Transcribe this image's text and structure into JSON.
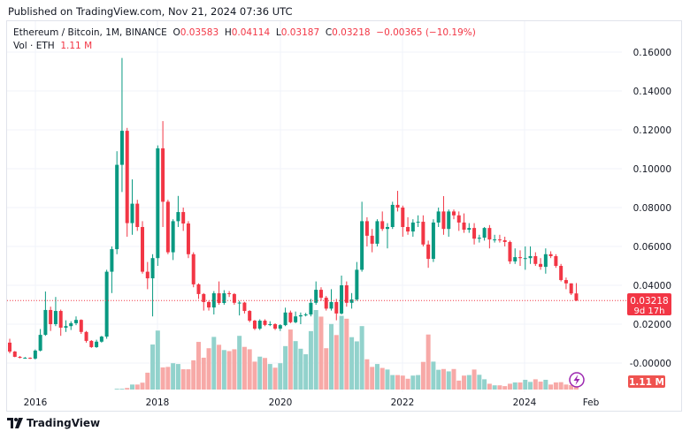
{
  "published": "Published on TradingView.com, Nov 21, 2024 07:36 UTC",
  "legend": {
    "symbol": "Ethereum / Bitcoin, 1M, BINANCE",
    "o_label": "O",
    "o": "0.03583",
    "h_label": "H",
    "h": "0.04114",
    "l_label": "L",
    "l": "0.03187",
    "c_label": "C",
    "c": "0.03218",
    "change": "−0.00365 (−10.19%)",
    "vol_label": "Vol · ETH",
    "vol": "1.11 M"
  },
  "price_tag": {
    "price": "0.03218",
    "countdown": "9d 17h"
  },
  "volume_tag": "1.11 M",
  "footer": {
    "brand": "TradingView"
  },
  "colors": {
    "up": "#089981",
    "down": "#f23645",
    "up_volume": "#92d2cc",
    "down_volume": "#f7a9a7",
    "grid": "#f0f3fa",
    "alert_icon": "#9c27b0"
  },
  "icons": {
    "alert": "lightning-icon",
    "logo": "tradingview-logo-icon"
  },
  "chart_data": {
    "type": "candlestick",
    "title": "Ethereum / Bitcoin, 1M, BINANCE",
    "interval": "1M",
    "y_ticks": [
      "0.16000",
      "0.14000",
      "0.12000",
      "0.10000",
      "0.08000",
      "0.06000",
      "0.04000",
      "0.02000",
      "-0.00000"
    ],
    "y_tick_values": [
      0.16,
      0.14,
      0.12,
      0.1,
      0.08,
      0.06,
      0.04,
      0.02,
      0.0
    ],
    "x_ticks": [
      "2016",
      "2018",
      "2020",
      "2022",
      "2024",
      "Feb"
    ],
    "ylim": [
      0,
      0.16
    ],
    "grid": true,
    "last_price": 0.03218,
    "dates": [
      "2015-08",
      "2015-09",
      "2015-10",
      "2015-11",
      "2015-12",
      "2016-01",
      "2016-02",
      "2016-03",
      "2016-04",
      "2016-05",
      "2016-06",
      "2016-07",
      "2016-08",
      "2016-09",
      "2016-10",
      "2016-11",
      "2016-12",
      "2017-01",
      "2017-02",
      "2017-03",
      "2017-04",
      "2017-05",
      "2017-06",
      "2017-07",
      "2017-08",
      "2017-09",
      "2017-10",
      "2017-11",
      "2017-12",
      "2018-01",
      "2018-02",
      "2018-03",
      "2018-04",
      "2018-05",
      "2018-06",
      "2018-07",
      "2018-08",
      "2018-09",
      "2018-10",
      "2018-11",
      "2018-12",
      "2019-01",
      "2019-02",
      "2019-03",
      "2019-04",
      "2019-05",
      "2019-06",
      "2019-07",
      "2019-08",
      "2019-09",
      "2019-10",
      "2019-11",
      "2019-12",
      "2020-01",
      "2020-02",
      "2020-03",
      "2020-04",
      "2020-05",
      "2020-06",
      "2020-07",
      "2020-08",
      "2020-09",
      "2020-10",
      "2020-11",
      "2020-12",
      "2021-01",
      "2021-02",
      "2021-03",
      "2021-04",
      "2021-05",
      "2021-06",
      "2021-07",
      "2021-08",
      "2021-09",
      "2021-10",
      "2021-11",
      "2021-12",
      "2022-01",
      "2022-02",
      "2022-03",
      "2022-04",
      "2022-05",
      "2022-06",
      "2022-07",
      "2022-08",
      "2022-09",
      "2022-10",
      "2022-11",
      "2022-12",
      "2023-01",
      "2023-02",
      "2023-03",
      "2023-04",
      "2023-05",
      "2023-06",
      "2023-07",
      "2023-08",
      "2023-09",
      "2023-10",
      "2023-11",
      "2023-12",
      "2024-01",
      "2024-02",
      "2024-03",
      "2024-04",
      "2024-05",
      "2024-06",
      "2024-07",
      "2024-08",
      "2024-09",
      "2024-10",
      "2024-11"
    ],
    "ohlc": [
      [
        0.0105,
        0.0125,
        0.005,
        0.0059
      ],
      [
        0.0059,
        0.0062,
        0.003,
        0.0032
      ],
      [
        0.0032,
        0.0036,
        0.0024,
        0.0027
      ],
      [
        0.0027,
        0.0031,
        0.0024,
        0.0027
      ],
      [
        0.0027,
        0.0029,
        0.0021,
        0.0023
      ],
      [
        0.0023,
        0.007,
        0.0018,
        0.0064
      ],
      [
        0.0064,
        0.0175,
        0.006,
        0.0145
      ],
      [
        0.0145,
        0.0368,
        0.014,
        0.0273
      ],
      [
        0.0273,
        0.029,
        0.0165,
        0.02
      ],
      [
        0.02,
        0.034,
        0.019,
        0.0268
      ],
      [
        0.0268,
        0.0275,
        0.014,
        0.0182
      ],
      [
        0.0182,
        0.022,
        0.016,
        0.019
      ],
      [
        0.019,
        0.0215,
        0.017,
        0.0205
      ],
      [
        0.0205,
        0.024,
        0.0195,
        0.0222
      ],
      [
        0.0222,
        0.0225,
        0.015,
        0.016
      ],
      [
        0.016,
        0.0165,
        0.0105,
        0.0114
      ],
      [
        0.0114,
        0.0118,
        0.0078,
        0.0082
      ],
      [
        0.0082,
        0.012,
        0.0078,
        0.011
      ],
      [
        0.011,
        0.014,
        0.0105,
        0.0136
      ],
      [
        0.0136,
        0.048,
        0.0125,
        0.047
      ],
      [
        0.047,
        0.06,
        0.036,
        0.0586
      ],
      [
        0.0586,
        0.109,
        0.056,
        0.102
      ],
      [
        0.102,
        0.157,
        0.088,
        0.1195
      ],
      [
        0.1195,
        0.121,
        0.065,
        0.072
      ],
      [
        0.072,
        0.0945,
        0.066,
        0.082
      ],
      [
        0.082,
        0.084,
        0.068,
        0.07
      ],
      [
        0.07,
        0.073,
        0.046,
        0.047
      ],
      [
        0.047,
        0.052,
        0.038,
        0.0436
      ],
      [
        0.0436,
        0.056,
        0.024,
        0.054
      ],
      [
        0.054,
        0.112,
        0.05,
        0.1105
      ],
      [
        0.1105,
        0.1245,
        0.07,
        0.083
      ],
      [
        0.083,
        0.084,
        0.056,
        0.057
      ],
      [
        0.057,
        0.074,
        0.053,
        0.073
      ],
      [
        0.073,
        0.086,
        0.07,
        0.0777
      ],
      [
        0.0777,
        0.08,
        0.068,
        0.0718
      ],
      [
        0.0718,
        0.073,
        0.054,
        0.056
      ],
      [
        0.056,
        0.057,
        0.039,
        0.0405
      ],
      [
        0.0405,
        0.041,
        0.033,
        0.0355
      ],
      [
        0.0355,
        0.036,
        0.027,
        0.0314
      ],
      [
        0.0314,
        0.032,
        0.027,
        0.0286
      ],
      [
        0.0286,
        0.037,
        0.025,
        0.0359
      ],
      [
        0.0359,
        0.042,
        0.03,
        0.0309
      ],
      [
        0.0309,
        0.0375,
        0.03,
        0.0359
      ],
      [
        0.0359,
        0.037,
        0.034,
        0.0355
      ],
      [
        0.0355,
        0.036,
        0.03,
        0.031
      ],
      [
        0.031,
        0.032,
        0.0245,
        0.0311
      ],
      [
        0.0311,
        0.0315,
        0.0255,
        0.0268
      ],
      [
        0.0268,
        0.0272,
        0.021,
        0.0218
      ],
      [
        0.0218,
        0.0222,
        0.017,
        0.0177
      ],
      [
        0.0177,
        0.0225,
        0.017,
        0.0218
      ],
      [
        0.0218,
        0.0225,
        0.019,
        0.0196
      ],
      [
        0.0196,
        0.0215,
        0.019,
        0.02
      ],
      [
        0.02,
        0.0205,
        0.017,
        0.0177
      ],
      [
        0.0177,
        0.02,
        0.0165,
        0.0195
      ],
      [
        0.0195,
        0.0285,
        0.019,
        0.026
      ],
      [
        0.026,
        0.027,
        0.0205,
        0.021
      ],
      [
        0.021,
        0.0265,
        0.0205,
        0.024
      ],
      [
        0.024,
        0.026,
        0.02,
        0.0246
      ],
      [
        0.0246,
        0.0258,
        0.024,
        0.025
      ],
      [
        0.025,
        0.033,
        0.024,
        0.031
      ],
      [
        0.031,
        0.042,
        0.03,
        0.0377
      ],
      [
        0.0377,
        0.039,
        0.032,
        0.0336
      ],
      [
        0.0336,
        0.0345,
        0.027,
        0.028
      ],
      [
        0.028,
        0.038,
        0.027,
        0.0314
      ],
      [
        0.0314,
        0.033,
        0.022,
        0.0255
      ],
      [
        0.0255,
        0.045,
        0.025,
        0.04
      ],
      [
        0.04,
        0.042,
        0.029,
        0.031
      ],
      [
        0.031,
        0.036,
        0.028,
        0.0327
      ],
      [
        0.0327,
        0.052,
        0.032,
        0.048
      ],
      [
        0.048,
        0.083,
        0.047,
        0.073
      ],
      [
        0.073,
        0.075,
        0.06,
        0.0655
      ],
      [
        0.0655,
        0.069,
        0.057,
        0.0614
      ],
      [
        0.0614,
        0.074,
        0.06,
        0.073
      ],
      [
        0.073,
        0.078,
        0.068,
        0.069
      ],
      [
        0.069,
        0.072,
        0.059,
        0.07
      ],
      [
        0.07,
        0.083,
        0.069,
        0.0814
      ],
      [
        0.0814,
        0.0886,
        0.078,
        0.08
      ],
      [
        0.08,
        0.081,
        0.065,
        0.07
      ],
      [
        0.07,
        0.075,
        0.066,
        0.0677
      ],
      [
        0.0677,
        0.074,
        0.065,
        0.0723
      ],
      [
        0.0723,
        0.076,
        0.07,
        0.0727
      ],
      [
        0.0727,
        0.076,
        0.06,
        0.061
      ],
      [
        0.061,
        0.063,
        0.049,
        0.0536
      ],
      [
        0.0536,
        0.074,
        0.052,
        0.0723
      ],
      [
        0.0723,
        0.08,
        0.07,
        0.078
      ],
      [
        0.078,
        0.0859,
        0.066,
        0.069
      ],
      [
        0.069,
        0.079,
        0.065,
        0.078
      ],
      [
        0.078,
        0.079,
        0.074,
        0.076
      ],
      [
        0.076,
        0.078,
        0.068,
        0.0723
      ],
      [
        0.0723,
        0.077,
        0.067,
        0.0686
      ],
      [
        0.0686,
        0.072,
        0.067,
        0.0695
      ],
      [
        0.0695,
        0.072,
        0.061,
        0.064
      ],
      [
        0.064,
        0.066,
        0.062,
        0.0645
      ],
      [
        0.0645,
        0.07,
        0.063,
        0.0695
      ],
      [
        0.0695,
        0.071,
        0.059,
        0.0636
      ],
      [
        0.0636,
        0.066,
        0.062,
        0.0636
      ],
      [
        0.0636,
        0.066,
        0.062,
        0.0632
      ],
      [
        0.0632,
        0.065,
        0.06,
        0.0623
      ],
      [
        0.0623,
        0.063,
        0.051,
        0.0523
      ],
      [
        0.0523,
        0.059,
        0.051,
        0.0545
      ],
      [
        0.0545,
        0.058,
        0.05,
        0.054
      ],
      [
        0.054,
        0.06,
        0.048,
        0.054
      ],
      [
        0.054,
        0.06,
        0.051,
        0.055
      ],
      [
        0.055,
        0.057,
        0.05,
        0.051
      ],
      [
        0.051,
        0.054,
        0.048,
        0.0495
      ],
      [
        0.0495,
        0.059,
        0.046,
        0.056
      ],
      [
        0.056,
        0.0575,
        0.054,
        0.055
      ],
      [
        0.055,
        0.056,
        0.049,
        0.05
      ],
      [
        0.05,
        0.051,
        0.042,
        0.0427
      ],
      [
        0.0427,
        0.044,
        0.038,
        0.041
      ],
      [
        0.041,
        0.041,
        0.035,
        0.0358
      ],
      [
        0.03583,
        0.04114,
        0.03187,
        0.03218
      ]
    ],
    "volume_unit": "M ETH",
    "volume": [
      0,
      0,
      0,
      0,
      0,
      0,
      0,
      0,
      0,
      0,
      0,
      0,
      0,
      0,
      0,
      0,
      0,
      0,
      0,
      0,
      0,
      0.3,
      0.3,
      0.6,
      1.9,
      1.9,
      2.6,
      6.4,
      17.1,
      22.4,
      8.4,
      8.6,
      10,
      9.7,
      7.7,
      7.7,
      11.1,
      18.1,
      12.1,
      15.7,
      20,
      17,
      15,
      14.6,
      15.3,
      20.4,
      16.2,
      15.3,
      10.6,
      12.5,
      12,
      9.7,
      8.3,
      10,
      16.5,
      22.8,
      18.4,
      15.5,
      13.4,
      22.2,
      30.2,
      27.7,
      15.7,
      24.9,
      20.7,
      28,
      26.9,
      19.9,
      18.3,
      24.1,
      11.5,
      8.6,
      9.7,
      8.2,
      7.6,
      5.5,
      5.5,
      5.3,
      4.1,
      5.3,
      5.5,
      10.5,
      20.9,
      10.6,
      7.5,
      7.8,
      6.9,
      7.8,
      3.4,
      5.3,
      5.5,
      7.6,
      5.6,
      3.9,
      2.2,
      1.6,
      1.6,
      1.3,
      2.2,
      2.7,
      2.7,
      3.7,
      2.9,
      3.9,
      3.0,
      3.7,
      1.9,
      2.7,
      2.8,
      1.9,
      1.7,
      1.11
    ]
  }
}
